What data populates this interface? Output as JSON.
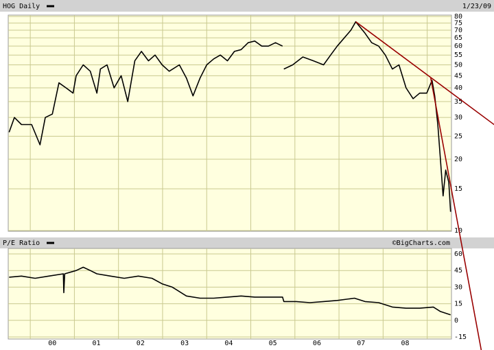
{
  "chart_data": [
    {
      "type": "line",
      "title": "HOG Daily",
      "date": "1/23/09",
      "scale": "log",
      "grid": true,
      "x": [
        1999.52,
        1999.64,
        1999.8,
        2000.03,
        2000.22,
        2000.34,
        2000.5,
        2000.65,
        2000.81,
        2000.97,
        2001.04,
        2001.2,
        2001.36,
        2001.51,
        2001.59,
        2001.74,
        2001.9,
        2002.06,
        2002.21,
        2002.37,
        2002.52,
        2002.68,
        2002.83,
        2002.99,
        2003.15,
        2003.38,
        2003.54,
        2003.69,
        2003.85,
        2004.0,
        2004.16,
        2004.31,
        2004.47,
        2004.63,
        2004.78,
        2004.94,
        2005.09,
        2005.25,
        2005.4,
        2005.56,
        2005.72,
        2005.73,
        2005.75,
        2005.95,
        2006.18,
        2006.42,
        2006.65,
        2006.81,
        2006.96,
        2007.12,
        2007.27,
        2007.38,
        2007.59,
        2007.74,
        2007.9,
        2008.05,
        2008.21,
        2008.36,
        2008.52,
        2008.68,
        2008.83,
        2008.99,
        2009.11,
        2009.17,
        2009.24,
        2009.3,
        2009.36,
        2009.42,
        2009.49,
        2009.53
      ],
      "series": [
        {
          "color": "#000000",
          "values": [
            26,
            30,
            28,
            28,
            23,
            30,
            31,
            42,
            40,
            38,
            45,
            50,
            47,
            38,
            48,
            50,
            40,
            45,
            35,
            52,
            57,
            52,
            55,
            50,
            47,
            50,
            44,
            37,
            44,
            50,
            53,
            55,
            52,
            57,
            58,
            62,
            63,
            60,
            60,
            62,
            60,
            null,
            48,
            50,
            54,
            52,
            50,
            55,
            60,
            65,
            70,
            76,
            68,
            62,
            60,
            55,
            48,
            50,
            40,
            36,
            38,
            38,
            43,
            37,
            28,
            20,
            14,
            18,
            16,
            12
          ]
        }
      ],
      "trendlines": [
        {
          "color": "#990000",
          "x": [
            2007.38,
            2010.55
          ],
          "values": [
            76,
            27.7
          ]
        },
        {
          "color": "#990000",
          "x": [
            2009.08,
            2010.23
          ],
          "values": [
            44,
            3.1
          ]
        }
      ],
      "xlim": [
        1999.5,
        2009.55
      ],
      "ylim": [
        10,
        80
      ],
      "yticks": [
        80,
        75,
        70,
        65,
        60,
        55,
        50,
        45,
        40,
        35,
        30,
        25,
        20,
        15,
        10
      ]
    },
    {
      "type": "line",
      "title": "P/E Ratio",
      "credit": "©BigCharts.com",
      "grid": true,
      "x": [
        1999.52,
        1999.8,
        2000.11,
        2000.42,
        2000.75,
        2000.76,
        2000.78,
        2001.04,
        2001.2,
        2001.36,
        2001.51,
        2001.82,
        2002.13,
        2002.45,
        2002.76,
        2002.99,
        2003.22,
        2003.54,
        2003.85,
        2004.16,
        2004.47,
        2004.78,
        2005.09,
        2005.4,
        2005.72,
        2005.75,
        2006.03,
        2006.34,
        2006.65,
        2006.96,
        2007.35,
        2007.59,
        2007.9,
        2008.21,
        2008.52,
        2008.83,
        2009.14,
        2009.3,
        2009.53
      ],
      "series": [
        {
          "color": "#000000",
          "values": [
            39,
            40,
            38,
            40,
            42,
            25,
            42,
            45,
            48,
            45,
            42,
            40,
            38,
            40,
            38,
            33,
            30,
            22,
            20,
            20,
            21,
            22,
            21,
            21,
            21,
            17,
            17,
            16,
            17,
            18,
            20,
            17,
            16,
            12,
            11,
            11,
            12,
            8,
            5
          ]
        }
      ],
      "xlim": [
        1999.5,
        2009.55
      ],
      "ylim": [
        -15,
        60
      ],
      "yticks": [
        60,
        45,
        30,
        15,
        0,
        -15
      ],
      "xticks": [
        {
          "value": 2000,
          "label": "00"
        },
        {
          "value": 2001,
          "label": "01"
        },
        {
          "value": 2002,
          "label": "02"
        },
        {
          "value": 2003,
          "label": "03"
        },
        {
          "value": 2004,
          "label": "04"
        },
        {
          "value": 2005,
          "label": "05"
        },
        {
          "value": 2006,
          "label": "06"
        },
        {
          "value": 2007,
          "label": "07"
        },
        {
          "value": 2008,
          "label": "08"
        },
        {
          "value": 2009,
          "label": null
        }
      ]
    }
  ]
}
